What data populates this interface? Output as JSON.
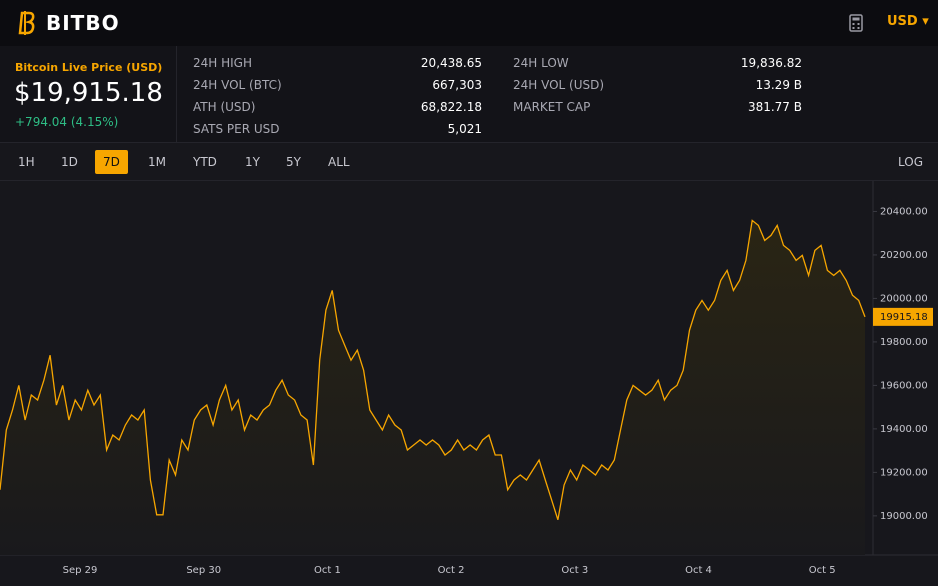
{
  "header": {
    "brand": "BITBO",
    "currency": "USD"
  },
  "price": {
    "label": "Bitcoin Live Price (USD)",
    "value": "$19,915.18",
    "change": "+794.04 (4.15%)"
  },
  "stats": [
    {
      "label": "24H HIGH",
      "value": "20,438.65"
    },
    {
      "label": "24H LOW",
      "value": "19,836.82"
    },
    {
      "label": "24H VOL (BTC)",
      "value": "667,303"
    },
    {
      "label": "24H VOL (USD)",
      "value": "13.29 B"
    },
    {
      "label": "ATH (USD)",
      "value": "68,822.18"
    },
    {
      "label": "MARKET CAP",
      "value": "381.77 B"
    },
    {
      "label": "SATS PER USD",
      "value": "5,021"
    }
  ],
  "ranges": [
    "1H",
    "1D",
    "7D",
    "1M",
    "YTD",
    "1Y",
    "5Y",
    "ALL"
  ],
  "active_range": "7D",
  "log_button": "LOG",
  "chart_data": {
    "type": "line",
    "color": "#f7a600",
    "xtick_labels": [
      "Sep 29",
      "Sep 30",
      "Oct 1",
      "Oct 2",
      "Oct 3",
      "Oct 4",
      "Oct 5"
    ],
    "values": [
      19120,
      19395,
      19487,
      19600,
      19441,
      19556,
      19533,
      19624,
      19739,
      19510,
      19600,
      19441,
      19533,
      19487,
      19578,
      19510,
      19556,
      19303,
      19372,
      19349,
      19418,
      19464,
      19441,
      19487,
      19165,
      19005,
      19005,
      19257,
      19188,
      19349,
      19303,
      19441,
      19487,
      19510,
      19418,
      19533,
      19600,
      19487,
      19533,
      19395,
      19464,
      19441,
      19487,
      19510,
      19578,
      19624,
      19556,
      19533,
      19464,
      19441,
      19234,
      19716,
      19946,
      20037,
      19854,
      19785,
      19716,
      19762,
      19670,
      19487,
      19441,
      19395,
      19464,
      19418,
      19395,
      19303,
      19326,
      19349,
      19326,
      19349,
      19326,
      19280,
      19303,
      19349,
      19303,
      19326,
      19303,
      19349,
      19372,
      19280,
      19280,
      19120,
      19165,
      19188,
      19165,
      19211,
      19257,
      19165,
      19074,
      18982,
      19142,
      19211,
      19165,
      19234,
      19211,
      19188,
      19234,
      19211,
      19257,
      19395,
      19533,
      19600,
      19578,
      19556,
      19578,
      19624,
      19533,
      19578,
      19600,
      19670,
      19854,
      19946,
      19991,
      19946,
      19991,
      20083,
      20129,
      20037,
      20083,
      20175,
      20359,
      20336,
      20267,
      20290,
      20336,
      20244,
      20221,
      20175,
      20198,
      20106,
      20221,
      20244,
      20129,
      20106,
      20129,
      20083,
      20015,
      19991,
      19915.18
    ],
    "current_price": 19915.18,
    "ylim": [
      18820,
      20540
    ],
    "yticks": [
      {
        "value": 19000,
        "label": "19000.00"
      },
      {
        "value": 19200,
        "label": "19200.00"
      },
      {
        "value": 19400,
        "label": "19400.00"
      },
      {
        "value": 19600,
        "label": "19600.00"
      },
      {
        "value": 19800,
        "label": "19800.00"
      },
      {
        "value": 20000,
        "label": "20000.00"
      },
      {
        "value": 20200,
        "label": "20200.00"
      },
      {
        "value": 20400,
        "label": "20400.00"
      }
    ]
  }
}
